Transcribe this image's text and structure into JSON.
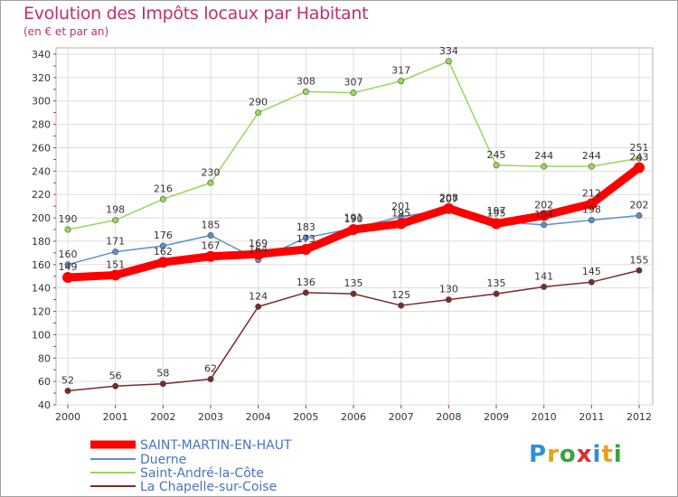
{
  "header": {
    "title": "Evolution des Impôts locaux par Habitant",
    "subtitle": "(en € et par an)"
  },
  "logo": {
    "text": "Proxiti",
    "colors": [
      "#2f8fd8",
      "#e8a020",
      "#3aa040",
      "#d83030",
      "#2f8fd8",
      "#e8a020",
      "#3aa040"
    ]
  },
  "chart_data": {
    "type": "line",
    "title": "Evolution des Impôts locaux par Habitant",
    "subtitle": "(en € et par an)",
    "x": [
      "2000",
      "2001",
      "2002",
      "2003",
      "2004",
      "2005",
      "2006",
      "2007",
      "2008",
      "2009",
      "2010",
      "2011",
      "2012"
    ],
    "ylim": [
      40,
      340
    ],
    "yticks": [
      40,
      60,
      80,
      100,
      120,
      140,
      160,
      180,
      200,
      220,
      240,
      260,
      280,
      300,
      320,
      340
    ],
    "grid": true,
    "legend_position": "bottom-left",
    "series": [
      {
        "name": "SAINT-MARTIN-EN-HAUT",
        "color": "#ff0000",
        "width": 9,
        "marker": 6,
        "values": [
          149,
          151,
          162,
          167,
          169,
          173,
          190,
          195,
          208,
          195,
          202,
          212,
          243
        ],
        "labels": [
          "149",
          "151",
          "162",
          "167",
          "169",
          "173",
          "190",
          "195",
          "208",
          "195",
          "202",
          "212",
          "243"
        ]
      },
      {
        "name": "Duerne",
        "color": "#5b8fc8",
        "width": 1.5,
        "marker": 3.2,
        "values": [
          160,
          171,
          176,
          185,
          164,
          183,
          191,
          201,
          207,
          197,
          194,
          198,
          202
        ],
        "labels": [
          "160",
          "171",
          "176",
          "185",
          "164",
          "183",
          "191",
          "201",
          "207",
          "197",
          "194",
          "198",
          "202"
        ]
      },
      {
        "name": "Saint-André-la-Côte",
        "color": "#9ad65a",
        "width": 1.5,
        "marker": 3.2,
        "values": [
          190,
          198,
          216,
          230,
          290,
          308,
          307,
          317,
          334,
          245,
          244,
          244,
          251
        ],
        "labels": [
          "190",
          "198",
          "216",
          "230",
          "290",
          "308",
          "307",
          "317",
          "334",
          "245",
          "244",
          "244",
          "251"
        ]
      },
      {
        "name": "La Chapelle-sur-Coise",
        "color": "#7a2a2a",
        "width": 1.5,
        "marker": 3.2,
        "values": [
          52,
          56,
          58,
          62,
          124,
          136,
          135,
          125,
          130,
          135,
          141,
          145,
          155
        ],
        "labels": [
          "52",
          "56",
          "58",
          "62",
          "124",
          "136",
          "135",
          "125",
          "130",
          "135",
          "141",
          "145",
          "155"
        ]
      }
    ]
  }
}
